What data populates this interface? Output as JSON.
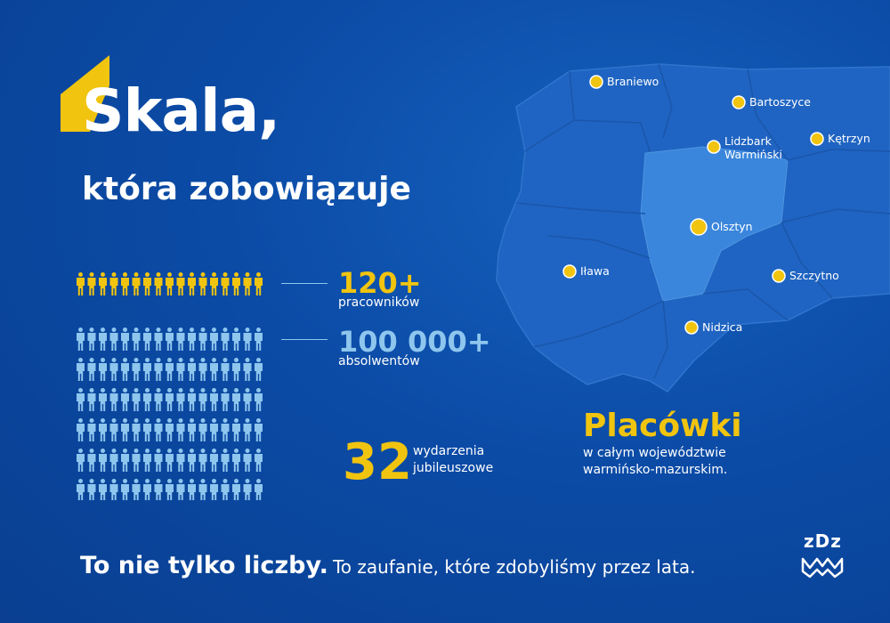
{
  "headline": {
    "title": "Skala,",
    "subtitle": "która zobowiązuje"
  },
  "stats": {
    "employees": {
      "value": "120+",
      "label": "pracowników",
      "icon": "person-icon",
      "color": "#f1c40f"
    },
    "graduates": {
      "value": "100 000+",
      "label": "absolwentów",
      "icon": "person-icon",
      "color": "#8ec6ee"
    },
    "events": {
      "value": "32",
      "label_line1": "wydarzenia",
      "label_line2": "jubileuszowe"
    }
  },
  "map": {
    "cities": [
      {
        "name": "Braniewo"
      },
      {
        "name": "Bartoszyce"
      },
      {
        "name": "Lidzbark",
        "name2": "Warmiński"
      },
      {
        "name": "Kętrzyn"
      },
      {
        "name": "Olsztyn"
      },
      {
        "name": "Iława"
      },
      {
        "name": "Szczytno"
      },
      {
        "name": "Nidzica"
      }
    ],
    "heading": "Placówki",
    "caption_line1": "w całym województwie",
    "caption_line2": "warmińsko-mazurskim."
  },
  "footer": {
    "strong": "To nie tylko liczby.",
    "rest": "To zaufanie, które zdobyliśmy przez lata."
  },
  "logo": {
    "text": "zDz"
  },
  "colors": {
    "background": "#0b4ba6",
    "accent": "#f1c40f",
    "light": "#8ec6ee",
    "map_fill": "#1f64c2",
    "map_center": "#3a86dc"
  }
}
